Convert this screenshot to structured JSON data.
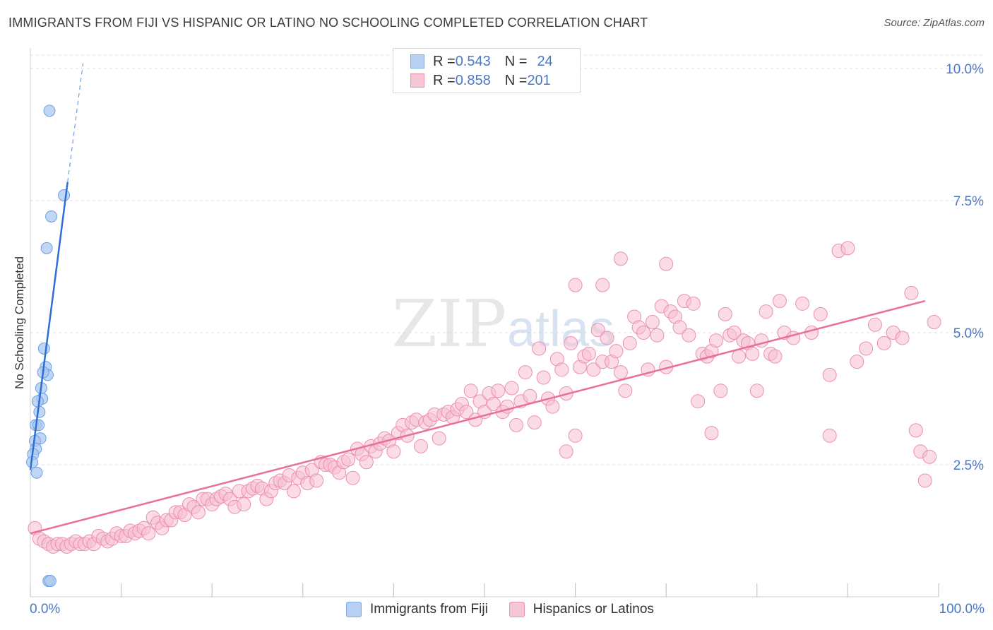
{
  "header": {
    "title": "IMMIGRANTS FROM FIJI VS HISPANIC OR LATINO NO SCHOOLING COMPLETED CORRELATION CHART",
    "source": "Source: ZipAtlas.com"
  },
  "watermark": {
    "zip": "ZIP",
    "atlas": "atlas"
  },
  "legend_top": [
    {
      "r_label": "R = ",
      "r_value": "0.543",
      "n_label": "N = ",
      "n_value": "24"
    },
    {
      "r_label": "R = ",
      "r_value": "0.858",
      "n_label": "N = ",
      "n_value": "201"
    }
  ],
  "legend_bottom": [
    {
      "label": "Immigrants from Fiji"
    },
    {
      "label": "Hispanics or Latinos"
    }
  ],
  "colors": {
    "fiji_fill": "#aac8f0",
    "fiji_stroke": "#6f9fe0",
    "fiji_line": "#2d6fd6",
    "hisp_fill": "#f7c0d2",
    "hisp_stroke": "#eb8fb0",
    "hisp_line": "#e8719c",
    "axis_text": "#4a78c8",
    "grid": "#dddddd"
  },
  "chart_data": {
    "type": "scatter",
    "title": "IMMIGRANTS FROM FIJI VS HISPANIC OR LATINO NO SCHOOLING COMPLETED CORRELATION CHART",
    "xlabel": "",
    "ylabel": "No Schooling Completed",
    "xlim": [
      0,
      100
    ],
    "ylim": [
      0,
      10.25
    ],
    "x_tick_labels": [
      {
        "value": 0,
        "label": "0.0%"
      },
      {
        "value": 100,
        "label": "100.0%"
      }
    ],
    "y_ticks": [
      {
        "value": 2.5,
        "label": "2.5%"
      },
      {
        "value": 5.0,
        "label": "5.0%"
      },
      {
        "value": 7.5,
        "label": "7.5%"
      },
      {
        "value": 10.0,
        "label": "10.0%"
      }
    ],
    "grid": true,
    "series": [
      {
        "name": "Immigrants from Fiji",
        "r": 0.543,
        "n": 24,
        "trend": {
          "x0": 0.0,
          "y0": 2.4,
          "x1": 4.1,
          "y1": 7.85,
          "dash_x1": 5.8,
          "dash_y1": 10.1
        },
        "points": [
          [
            2.1,
            9.2
          ],
          [
            3.7,
            7.6
          ],
          [
            2.3,
            7.2
          ],
          [
            1.8,
            6.6
          ],
          [
            1.5,
            4.7
          ],
          [
            1.7,
            4.35
          ],
          [
            1.9,
            4.2
          ],
          [
            1.4,
            4.25
          ],
          [
            1.2,
            3.95
          ],
          [
            1.3,
            3.75
          ],
          [
            0.8,
            3.7
          ],
          [
            1.0,
            3.5
          ],
          [
            0.6,
            3.25
          ],
          [
            0.9,
            3.25
          ],
          [
            1.1,
            3.0
          ],
          [
            0.5,
            2.95
          ],
          [
            0.6,
            2.8
          ],
          [
            0.3,
            2.7
          ],
          [
            0.2,
            2.55
          ],
          [
            0.7,
            2.35
          ],
          [
            2.0,
            0.3
          ],
          [
            2.2,
            0.3
          ]
        ]
      },
      {
        "name": "Hispanics or Latinos",
        "r": 0.858,
        "n": 201,
        "trend": {
          "x0": 0.0,
          "y0": 1.2,
          "x1": 98.5,
          "y1": 5.6
        },
        "points": [
          [
            0.5,
            1.3
          ],
          [
            1.0,
            1.1
          ],
          [
            1.5,
            1.05
          ],
          [
            2.0,
            1.0
          ],
          [
            2.5,
            0.95
          ],
          [
            3.0,
            1.0
          ],
          [
            3.5,
            1.0
          ],
          [
            4.0,
            0.95
          ],
          [
            4.5,
            1.0
          ],
          [
            5.0,
            1.05
          ],
          [
            5.5,
            1.0
          ],
          [
            6.0,
            1.0
          ],
          [
            6.5,
            1.05
          ],
          [
            7.0,
            1.0
          ],
          [
            7.5,
            1.15
          ],
          [
            8.0,
            1.1
          ],
          [
            8.5,
            1.05
          ],
          [
            9.0,
            1.1
          ],
          [
            9.5,
            1.2
          ],
          [
            10.0,
            1.15
          ],
          [
            10.5,
            1.15
          ],
          [
            11.0,
            1.25
          ],
          [
            11.5,
            1.2
          ],
          [
            12.0,
            1.25
          ],
          [
            12.5,
            1.3
          ],
          [
            13.0,
            1.2
          ],
          [
            13.5,
            1.5
          ],
          [
            14.0,
            1.4
          ],
          [
            14.5,
            1.3
          ],
          [
            15.0,
            1.45
          ],
          [
            15.5,
            1.45
          ],
          [
            16.0,
            1.6
          ],
          [
            16.5,
            1.6
          ],
          [
            17.0,
            1.55
          ],
          [
            17.5,
            1.75
          ],
          [
            18.0,
            1.7
          ],
          [
            18.5,
            1.6
          ],
          [
            19.0,
            1.85
          ],
          [
            19.5,
            1.85
          ],
          [
            20.0,
            1.75
          ],
          [
            20.5,
            1.85
          ],
          [
            21.0,
            1.9
          ],
          [
            21.5,
            1.95
          ],
          [
            22.0,
            1.85
          ],
          [
            22.5,
            1.7
          ],
          [
            23.0,
            2.0
          ],
          [
            23.5,
            1.75
          ],
          [
            24.0,
            2.0
          ],
          [
            24.5,
            2.05
          ],
          [
            25.0,
            2.1
          ],
          [
            25.5,
            2.05
          ],
          [
            26.0,
            1.85
          ],
          [
            26.5,
            2.0
          ],
          [
            27.0,
            2.15
          ],
          [
            27.5,
            2.2
          ],
          [
            28.0,
            2.15
          ],
          [
            28.5,
            2.3
          ],
          [
            29.0,
            2.0
          ],
          [
            29.5,
            2.25
          ],
          [
            30.0,
            2.35
          ],
          [
            30.5,
            2.15
          ],
          [
            31.0,
            2.4
          ],
          [
            31.5,
            2.2
          ],
          [
            32.0,
            2.55
          ],
          [
            32.5,
            2.5
          ],
          [
            33.0,
            2.5
          ],
          [
            33.5,
            2.45
          ],
          [
            34.0,
            2.35
          ],
          [
            34.5,
            2.55
          ],
          [
            35.0,
            2.6
          ],
          [
            35.5,
            2.25
          ],
          [
            36.0,
            2.8
          ],
          [
            36.5,
            2.7
          ],
          [
            37.0,
            2.55
          ],
          [
            37.5,
            2.85
          ],
          [
            38.0,
            2.75
          ],
          [
            38.5,
            2.9
          ],
          [
            39.0,
            3.0
          ],
          [
            39.5,
            2.95
          ],
          [
            40.0,
            2.75
          ],
          [
            40.5,
            3.1
          ],
          [
            41.0,
            3.25
          ],
          [
            41.5,
            3.05
          ],
          [
            42.0,
            3.3
          ],
          [
            42.5,
            3.35
          ],
          [
            43.0,
            2.85
          ],
          [
            43.5,
            3.3
          ],
          [
            44.0,
            3.35
          ],
          [
            44.5,
            3.45
          ],
          [
            45.0,
            3.0
          ],
          [
            45.5,
            3.45
          ],
          [
            46.0,
            3.5
          ],
          [
            46.5,
            3.4
          ],
          [
            47.0,
            3.55
          ],
          [
            47.5,
            3.65
          ],
          [
            48.0,
            3.5
          ],
          [
            48.5,
            3.9
          ],
          [
            49.0,
            3.35
          ],
          [
            49.5,
            3.7
          ],
          [
            50.0,
            3.5
          ],
          [
            50.5,
            3.85
          ],
          [
            51.0,
            3.65
          ],
          [
            51.5,
            3.9
          ],
          [
            52.0,
            3.5
          ],
          [
            52.5,
            3.6
          ],
          [
            53.0,
            3.95
          ],
          [
            53.5,
            3.25
          ],
          [
            54.0,
            3.7
          ],
          [
            54.5,
            4.25
          ],
          [
            55.0,
            3.8
          ],
          [
            55.5,
            3.3
          ],
          [
            56.0,
            4.7
          ],
          [
            56.5,
            4.15
          ],
          [
            57.0,
            3.75
          ],
          [
            57.5,
            3.6
          ],
          [
            58.0,
            4.5
          ],
          [
            58.5,
            4.3
          ],
          [
            59.0,
            3.85
          ],
          [
            59.5,
            4.8
          ],
          [
            60.0,
            3.05
          ],
          [
            60.5,
            4.35
          ],
          [
            61.0,
            4.55
          ],
          [
            61.5,
            4.6
          ],
          [
            62.0,
            4.3
          ],
          [
            62.5,
            5.05
          ],
          [
            63.0,
            4.45
          ],
          [
            63.5,
            4.9
          ],
          [
            64.0,
            4.45
          ],
          [
            64.5,
            4.65
          ],
          [
            65.0,
            4.25
          ],
          [
            65.5,
            3.9
          ],
          [
            66.0,
            4.8
          ],
          [
            66.5,
            5.3
          ],
          [
            67.0,
            5.1
          ],
          [
            67.5,
            5.0
          ],
          [
            68.0,
            4.3
          ],
          [
            68.5,
            5.2
          ],
          [
            69.0,
            4.95
          ],
          [
            69.5,
            5.5
          ],
          [
            70.0,
            4.35
          ],
          [
            70.5,
            5.4
          ],
          [
            71.0,
            5.3
          ],
          [
            71.5,
            5.1
          ],
          [
            72.0,
            5.6
          ],
          [
            72.5,
            4.95
          ],
          [
            73.0,
            5.55
          ],
          [
            73.5,
            3.7
          ],
          [
            74.0,
            4.6
          ],
          [
            74.5,
            4.55
          ],
          [
            75.0,
            4.65
          ],
          [
            75.5,
            4.85
          ],
          [
            76.0,
            3.9
          ],
          [
            76.5,
            5.35
          ],
          [
            77.0,
            4.95
          ],
          [
            77.5,
            5.0
          ],
          [
            78.0,
            4.55
          ],
          [
            78.5,
            4.85
          ],
          [
            79.0,
            4.8
          ],
          [
            79.5,
            4.6
          ],
          [
            80.0,
            3.9
          ],
          [
            80.5,
            4.85
          ],
          [
            81.0,
            5.4
          ],
          [
            81.5,
            4.6
          ],
          [
            82.0,
            4.55
          ],
          [
            82.5,
            5.6
          ],
          [
            83.0,
            5.0
          ],
          [
            84.0,
            4.9
          ],
          [
            85.0,
            5.55
          ],
          [
            86.0,
            5.0
          ],
          [
            87.0,
            5.35
          ],
          [
            88.0,
            4.2
          ],
          [
            89.0,
            6.55
          ],
          [
            90.0,
            6.6
          ],
          [
            91.0,
            4.45
          ],
          [
            92.0,
            4.7
          ],
          [
            93.0,
            5.15
          ],
          [
            94.0,
            4.8
          ],
          [
            95.0,
            5.0
          ],
          [
            96.0,
            4.9
          ],
          [
            97.0,
            5.75
          ],
          [
            97.5,
            3.15
          ],
          [
            98.0,
            2.75
          ],
          [
            98.5,
            2.2
          ],
          [
            99.0,
            2.65
          ],
          [
            99.5,
            5.2
          ],
          [
            60.0,
            5.9
          ],
          [
            63.0,
            5.9
          ],
          [
            65.0,
            6.4
          ],
          [
            70.0,
            6.3
          ],
          [
            75.0,
            3.1
          ],
          [
            88.0,
            3.05
          ],
          [
            59.0,
            2.75
          ]
        ]
      }
    ]
  }
}
